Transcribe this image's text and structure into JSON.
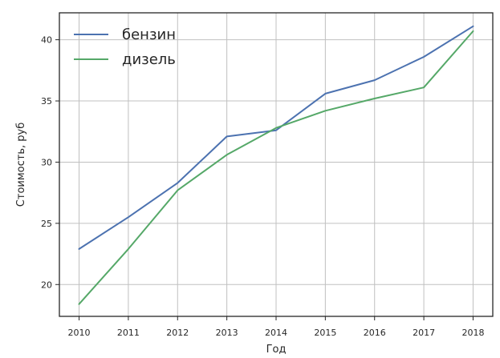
{
  "chart_data": {
    "type": "line",
    "title": "",
    "xlabel": "Год",
    "ylabel": "Стоимость, руб",
    "x": [
      2010,
      2011,
      2012,
      2013,
      2014,
      2015,
      2016,
      2017,
      2018
    ],
    "x_tick_labels": [
      "2010",
      "2011",
      "2012",
      "2013",
      "2014",
      "2015",
      "2016",
      "2017",
      "2018"
    ],
    "xlim": [
      2009.6,
      2018.4
    ],
    "ylim": [
      17.4,
      42.2
    ],
    "y_ticks": [
      20,
      25,
      30,
      35,
      40
    ],
    "y_tick_labels": [
      "20",
      "25",
      "30",
      "35",
      "40"
    ],
    "grid": true,
    "legend_position": "top-left",
    "series": [
      {
        "name": "бензин",
        "color": "#4c72b0",
        "values": [
          22.9,
          25.5,
          28.3,
          32.1,
          32.6,
          35.6,
          36.7,
          38.6,
          41.1
        ]
      },
      {
        "name": "дизель",
        "color": "#55a868",
        "values": [
          18.4,
          22.9,
          27.7,
          30.6,
          32.8,
          34.2,
          35.2,
          36.1,
          40.7
        ]
      }
    ]
  }
}
